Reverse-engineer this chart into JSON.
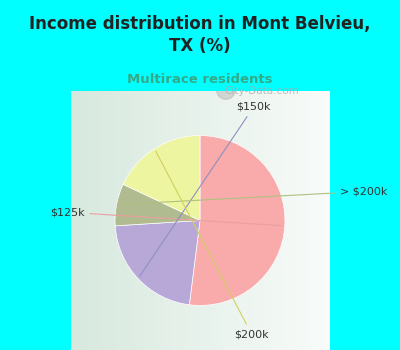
{
  "title": "Income distribution in Mont Belvieu,\nTX (%)",
  "subtitle": "Multirace residents",
  "title_color": "#222222",
  "subtitle_color": "#33aa88",
  "background_color": "#00ffff",
  "pie_area_bg": "#e8f5ee",
  "labels": [
    "$125k",
    "$150k",
    "> $200k",
    "$200k"
  ],
  "values": [
    52,
    22,
    8,
    18
  ],
  "colors": [
    "#f9aaaa",
    "#b8a8d8",
    "#b0bc90",
    "#eef5a0"
  ],
  "watermark": "City-Data.com",
  "label_color": "#333333",
  "line_colors": [
    "#e8a0a0",
    "#9090c0",
    "#b0c080",
    "#d0d060"
  ]
}
